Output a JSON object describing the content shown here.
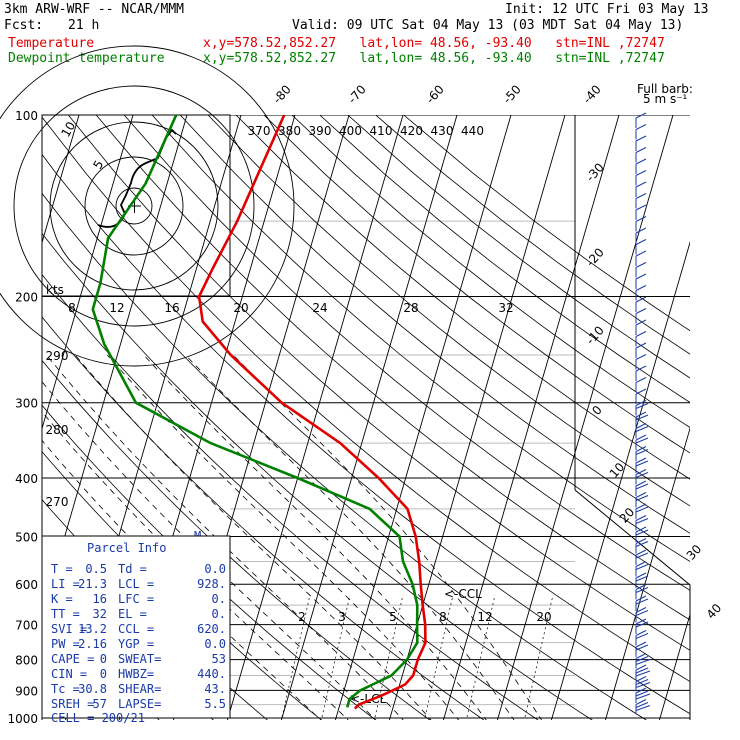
{
  "header": {
    "model": "3km ARW-WRF -- NCAR/MMM",
    "init": "Init: 12 UTC Fri 03 May 13",
    "fcst_label": "Fcst:",
    "fcst_value": "21 h",
    "valid": "Valid: 09 UTC Sat 04 May 13 (03 MDT Sat 04 May 13)",
    "temp_label": "Temperature",
    "dew_label": "Dewpoint temperature",
    "location_line": "x,y=578.52,852.27   lat,lon= 48.56, -93.40   stn=INL ,72747"
  },
  "colors": {
    "temperature": "#e00000",
    "dewpoint": "#008000",
    "parcel": "#1a3aa8"
  },
  "chart_data": {
    "type": "line",
    "title": "",
    "ylabel": "",
    "y_scale": "log-pressure",
    "pressure_ticks": [
      "100",
      "200",
      "300",
      "400",
      "500",
      "600",
      "700",
      "800",
      "900",
      "1000"
    ],
    "isotherm_labels": [
      "-80",
      "-70",
      "-60",
      "-50",
      "-40",
      "-30",
      "-20",
      "-10",
      "0",
      "10",
      "20",
      "30",
      "40"
    ],
    "theta_labels": [
      "370",
      "380",
      "390",
      "400",
      "410",
      "420",
      "430",
      "440"
    ],
    "mixing_ratio_labels": [
      "2",
      "3",
      "5",
      "8",
      "12",
      "20"
    ],
    "hodograph_speed_labels": [
      "8",
      "12",
      "16",
      "20",
      "24",
      "28",
      "32"
    ],
    "hodograph_ring_labels": [
      "5",
      "10"
    ],
    "hodograph_units": "kts",
    "theta_e_labels": [
      "290",
      "280",
      "270"
    ],
    "barb_legend": [
      "Full barb:",
      "5 m s⁻¹"
    ],
    "lcl_labels": [
      "<-CCL",
      "<-LCL"
    ],
    "m_marker": "M",
    "series": [
      {
        "name": "Temperature",
        "points": [
          [
            100,
            -52
          ],
          [
            150,
            -55
          ],
          [
            180,
            -57
          ],
          [
            200,
            -58
          ],
          [
            220,
            -56
          ],
          [
            250,
            -49
          ],
          [
            300,
            -37
          ],
          [
            350,
            -24
          ],
          [
            400,
            -15
          ],
          [
            450,
            -8
          ],
          [
            500,
            -5
          ],
          [
            550,
            -3
          ],
          [
            600,
            -1.5
          ],
          [
            650,
            0
          ],
          [
            700,
            1.5
          ],
          [
            750,
            2.5
          ],
          [
            800,
            2
          ],
          [
            850,
            2
          ],
          [
            880,
            1
          ],
          [
            900,
            -1
          ],
          [
            920,
            -3
          ],
          [
            950,
            -6.5
          ],
          [
            965,
            -7
          ]
        ]
      },
      {
        "name": "Dewpoint temperature",
        "points": [
          [
            100,
            -72
          ],
          [
            130,
            -74
          ],
          [
            160,
            -78
          ],
          [
            190,
            -77
          ],
          [
            210,
            -77
          ],
          [
            240,
            -73
          ],
          [
            300,
            -64
          ],
          [
            350,
            -48
          ],
          [
            400,
            -30
          ],
          [
            450,
            -15
          ],
          [
            500,
            -8
          ],
          [
            550,
            -6
          ],
          [
            600,
            -3
          ],
          [
            650,
            -1
          ],
          [
            700,
            0
          ],
          [
            750,
            1
          ],
          [
            800,
            0
          ],
          [
            850,
            -2
          ],
          [
            880,
            -5
          ],
          [
            900,
            -7
          ],
          [
            930,
            -8.5
          ],
          [
            960,
            -8.5
          ]
        ]
      }
    ]
  },
  "parcel": {
    "title": "Parcel Info",
    "rows": [
      [
        "T   =",
        "0.5",
        "Td =",
        "0.0"
      ],
      [
        "LI  =",
        "21.3",
        "LCL =",
        "928."
      ],
      [
        "K   =",
        "16",
        "LFC =",
        "0."
      ],
      [
        "TT  =",
        "32",
        "EL  =",
        "0."
      ],
      [
        "SVI =",
        "13.2",
        "CCL =",
        "620."
      ],
      [
        "PW  =",
        "2.16",
        "YGP =",
        "0.0"
      ],
      [
        "CAPE =",
        "0",
        "SWEAT=",
        "53"
      ],
      [
        "CIN  =",
        "0",
        "HWBZ=",
        "440."
      ],
      [
        "Tc   =",
        "30.8",
        "SHEAR=",
        "43."
      ],
      [
        "SREH =",
        "57",
        "LAPSE=",
        "5.5"
      ]
    ],
    "cell": "CELL = 200/21"
  }
}
